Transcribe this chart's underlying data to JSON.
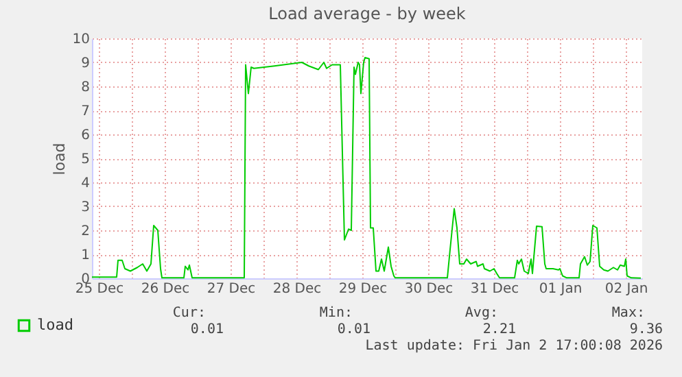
{
  "chart_data": {
    "type": "line",
    "title": "Load average - by week",
    "ylabel": "load",
    "x": [
      "2025-12-25T09:30",
      "2025-12-25T18:30",
      "2025-12-25T19:00",
      "2025-12-25T20:30",
      "2025-12-25T21:30",
      "2025-12-25T23:30",
      "2025-12-26T02:00",
      "2025-12-26T04:00",
      "2025-12-26T05:30",
      "2025-12-26T07:00",
      "2025-12-26T08:00",
      "2025-12-26T09:30",
      "2025-12-26T10:30",
      "2025-12-26T11:00",
      "2025-12-26T19:00",
      "2025-12-26T19:30",
      "2025-12-26T20:30",
      "2025-12-26T21:00",
      "2025-12-26T22:00",
      "2025-12-27T17:00",
      "2025-12-27T17:30",
      "2025-12-27T18:30",
      "2025-12-27T19:30",
      "2025-12-27T20:30",
      "2025-12-28T04:00",
      "2025-12-28T14:00",
      "2025-12-28T16:30",
      "2025-12-28T20:00",
      "2025-12-28T22:00",
      "2025-12-28T23:00",
      "2025-12-29T01:00",
      "2025-12-29T04:00",
      "2025-12-29T05:30",
      "2025-12-29T07:00",
      "2025-12-29T08:00",
      "2025-12-29T09:00",
      "2025-12-29T09:30",
      "2025-12-29T10:30",
      "2025-12-29T11:00",
      "2025-12-29T11:30",
      "2025-12-29T12:30",
      "2025-12-29T13:00",
      "2025-12-29T14:30",
      "2025-12-29T15:00",
      "2025-12-29T16:00",
      "2025-12-29T17:00",
      "2025-12-29T18:00",
      "2025-12-29T19:00",
      "2025-12-29T20:00",
      "2025-12-29T21:30",
      "2025-12-29T22:30",
      "2025-12-29T23:30",
      "2025-12-30T00:00",
      "2025-12-30T19:00",
      "2025-12-30T20:00",
      "2025-12-30T21:30",
      "2025-12-30T22:30",
      "2025-12-30T23:30",
      "2025-12-31T01:00",
      "2025-12-31T02:00",
      "2025-12-31T03:30",
      "2025-12-31T05:30",
      "2025-12-31T06:00",
      "2025-12-31T08:00",
      "2025-12-31T08:30",
      "2025-12-31T10:30",
      "2025-12-31T12:00",
      "2025-12-31T13:00",
      "2025-12-31T14:00",
      "2025-12-31T19:30",
      "2025-12-31T20:30",
      "2025-12-31T21:00",
      "2025-12-31T22:00",
      "2025-12-31T23:00",
      "2026-01-01T00:30",
      "2026-01-01T01:30",
      "2026-01-01T02:00",
      "2026-01-01T03:30",
      "2026-01-01T05:30",
      "2026-01-01T06:30",
      "2026-01-01T07:00",
      "2026-01-01T09:30",
      "2026-01-01T11:30",
      "2026-01-01T12:00",
      "2026-01-01T13:00",
      "2026-01-01T14:30",
      "2026-01-01T19:00",
      "2026-01-01T19:30",
      "2026-01-01T21:00",
      "2026-01-01T22:00",
      "2026-01-01T23:00",
      "2026-01-02T00:00",
      "2026-01-02T01:30",
      "2026-01-02T02:30",
      "2026-01-02T04:00",
      "2026-01-02T05:30",
      "2026-01-02T07:30",
      "2026-01-02T09:00",
      "2026-01-02T10:00",
      "2026-01-02T11:30",
      "2026-01-02T12:00",
      "2026-01-02T12:30",
      "2026-01-02T14:00",
      "2026-01-02T17:30"
    ],
    "series": [
      {
        "name": "load",
        "color": "#00cc00",
        "values": [
          0.05,
          0.05,
          0.75,
          0.75,
          0.4,
          0.3,
          0.45,
          0.6,
          0.3,
          0.6,
          2.2,
          2.0,
          0.4,
          0.02,
          0.02,
          0.5,
          0.35,
          0.55,
          0.02,
          0.02,
          8.9,
          7.7,
          8.8,
          8.75,
          8.85,
          9.0,
          8.85,
          8.7,
          9.0,
          8.75,
          8.9,
          8.9,
          1.6,
          2.05,
          2.0,
          8.8,
          8.5,
          9.0,
          8.9,
          7.7,
          9.0,
          9.2,
          9.15,
          2.1,
          2.1,
          0.3,
          0.3,
          0.8,
          0.3,
          1.3,
          0.5,
          0.1,
          0.02,
          0.02,
          1.2,
          2.9,
          2.1,
          0.6,
          0.6,
          0.8,
          0.6,
          0.7,
          0.5,
          0.6,
          0.4,
          0.3,
          0.4,
          0.2,
          0.02,
          0.02,
          0.75,
          0.6,
          0.8,
          0.3,
          0.2,
          0.8,
          0.2,
          2.17,
          2.15,
          0.6,
          0.4,
          0.4,
          0.35,
          0.4,
          0.1,
          0.02,
          0.02,
          0.6,
          0.9,
          0.55,
          0.7,
          2.2,
          2.1,
          0.5,
          0.35,
          0.3,
          0.45,
          0.35,
          0.55,
          0.5,
          0.8,
          0.1,
          0.02,
          0.01
        ]
      }
    ],
    "xlim": [
      "2025-12-25T09:30",
      "2026-01-02T18:00"
    ],
    "xticks": [
      {
        "value": "2025-12-25T12:00",
        "label": "25 Dec"
      },
      {
        "value": "2025-12-26T00:00",
        "label": null
      },
      {
        "value": "2025-12-26T12:00",
        "label": "26 Dec"
      },
      {
        "value": "2025-12-27T00:00",
        "label": null
      },
      {
        "value": "2025-12-27T12:00",
        "label": "27 Dec"
      },
      {
        "value": "2025-12-28T00:00",
        "label": null
      },
      {
        "value": "2025-12-28T12:00",
        "label": "28 Dec"
      },
      {
        "value": "2025-12-29T00:00",
        "label": null
      },
      {
        "value": "2025-12-29T12:00",
        "label": "29 Dec"
      },
      {
        "value": "2025-12-30T00:00",
        "label": null
      },
      {
        "value": "2025-12-30T12:00",
        "label": "30 Dec"
      },
      {
        "value": "2025-12-31T00:00",
        "label": null
      },
      {
        "value": "2025-12-31T12:00",
        "label": "31 Dec"
      },
      {
        "value": "2026-01-01T00:00",
        "label": null
      },
      {
        "value": "2026-01-01T12:00",
        "label": "01 Jan"
      },
      {
        "value": "2026-01-02T00:00",
        "label": null
      },
      {
        "value": "2026-01-02T12:00",
        "label": "02 Jan"
      }
    ],
    "ylim": [
      0,
      10
    ],
    "yticks": [
      0,
      1,
      2,
      3,
      4,
      5,
      6,
      7,
      8,
      9,
      10
    ],
    "grid": true,
    "legend": "bottom",
    "annotations": [
      "Cur:",
      "Min:",
      "Avg:",
      "Max:",
      "0.01",
      "0.01",
      "2.21",
      "9.36",
      "Last update: Fri Jan  2 17:00:08 2026"
    ]
  }
}
